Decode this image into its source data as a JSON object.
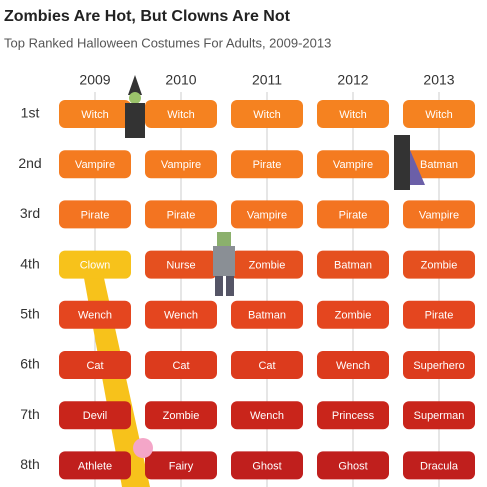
{
  "title": "Zombies Are Hot, But Clowns Are Not",
  "subtitle": "Top Ranked Halloween Costumes For Adults, 2009-2013",
  "table": {
    "columns": [
      "2009",
      "2010",
      "2011",
      "2012",
      "2013"
    ],
    "rows": [
      {
        "label": "1st",
        "color": "#f58220",
        "cells": [
          "Witch",
          "Witch",
          "Witch",
          "Witch",
          "Witch"
        ]
      },
      {
        "label": "2nd",
        "color": "#f47b20",
        "cells": [
          "Vampire",
          "Vampire",
          "Pirate",
          "Vampire",
          "Batman"
        ]
      },
      {
        "label": "3rd",
        "color": "#f37421",
        "cells": [
          "Pirate",
          "Pirate",
          "Vampire",
          "Pirate",
          "Vampire"
        ]
      },
      {
        "label": "4th",
        "color": "#e5501f",
        "cells": [
          "Clown",
          "Nurse",
          "Zombie",
          "Batman",
          "Zombie"
        ]
      },
      {
        "label": "5th",
        "color": "#e4461f",
        "cells": [
          "Wench",
          "Wench",
          "Batman",
          "Zombie",
          "Pirate"
        ]
      },
      {
        "label": "6th",
        "color": "#dc3b1d",
        "cells": [
          "Cat",
          "Cat",
          "Cat",
          "Wench",
          "Superhero"
        ]
      },
      {
        "label": "7th",
        "color": "#c9251b",
        "cells": [
          "Devil",
          "Zombie",
          "Wench",
          "Princess",
          "Superman"
        ]
      },
      {
        "label": "8th",
        "color": "#c01f1d",
        "cells": [
          "Athlete",
          "Fairy",
          "Ghost",
          "Ghost",
          "Dracula"
        ]
      }
    ]
  }
}
